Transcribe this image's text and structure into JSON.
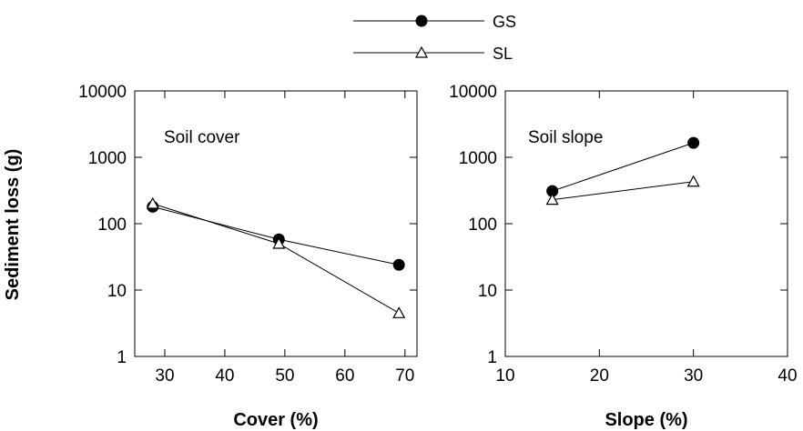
{
  "legend": [
    {
      "name": "GS",
      "marker": "filled-circle"
    },
    {
      "name": "SL",
      "marker": "open-triangle"
    }
  ],
  "shared_ylabel": "Sediment loss (g)",
  "chart_data": [
    {
      "type": "line",
      "title": "Soil cover",
      "xlabel": "Cover (%)",
      "ylabel": "Sediment loss (g)",
      "y_scale": "log",
      "xlim": [
        25,
        72
      ],
      "ylim": [
        1,
        10000
      ],
      "x_ticks": [
        30,
        40,
        50,
        60,
        70
      ],
      "y_ticks": [
        1,
        10,
        100,
        1000,
        10000
      ],
      "grid": false,
      "legend_position": "top-center",
      "series": [
        {
          "name": "GS",
          "marker": "filled-circle",
          "x": [
            28,
            49,
            69
          ],
          "y": [
            180,
            58,
            24
          ]
        },
        {
          "name": "SL",
          "marker": "open-triangle",
          "x": [
            28,
            49,
            69
          ],
          "y": [
            200,
            50,
            4.5
          ]
        }
      ]
    },
    {
      "type": "line",
      "title": "Soil slope",
      "xlabel": "Slope (%)",
      "ylabel": "",
      "y_scale": "log",
      "xlim": [
        10,
        40
      ],
      "ylim": [
        1,
        10000
      ],
      "x_ticks": [
        10,
        20,
        30,
        40
      ],
      "y_ticks": [
        1,
        10,
        100,
        1000,
        10000
      ],
      "grid": false,
      "legend_position": "top-center",
      "series": [
        {
          "name": "GS",
          "marker": "filled-circle",
          "x": [
            15,
            30
          ],
          "y": [
            310,
            1650
          ]
        },
        {
          "name": "SL",
          "marker": "open-triangle",
          "x": [
            15,
            30
          ],
          "y": [
            230,
            430
          ]
        }
      ]
    }
  ]
}
